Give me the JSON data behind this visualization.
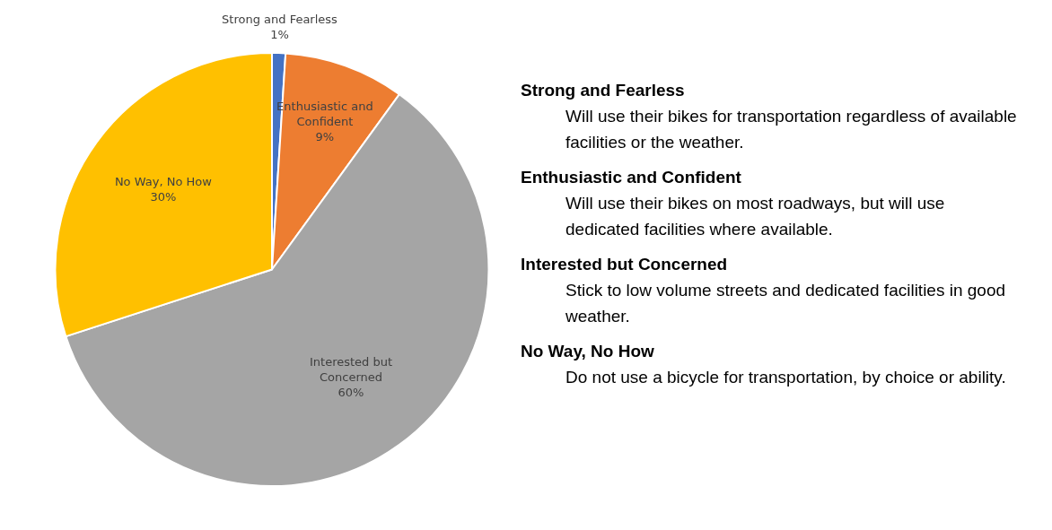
{
  "chart_data": {
    "type": "pie",
    "categories": [
      "Strong and Fearless",
      "Enthusiastic and Confident",
      "Interested but Concerned",
      "No Way, No How"
    ],
    "values": [
      1,
      9,
      60,
      30
    ],
    "colors": [
      "#4472c4",
      "#ed7d31",
      "#a5a5a5",
      "#ffc000"
    ],
    "value_labels": [
      "1%",
      "9%",
      "60%",
      "30%"
    ],
    "legend": false,
    "annotations": [
      "Strong and Fearless",
      "Will use their bikes for transportation regardless of available facilities or the weather.",
      "Enthusiastic and Confident",
      "Will use their bikes on most roadways, but will use dedicated facilities where available.",
      "Interested but Concerned",
      "Stick to low volume streets and dedicated facilities in good weather.",
      "No Way, No How",
      "Do not use a bicycle for transportation, by choice or ability."
    ]
  }
}
